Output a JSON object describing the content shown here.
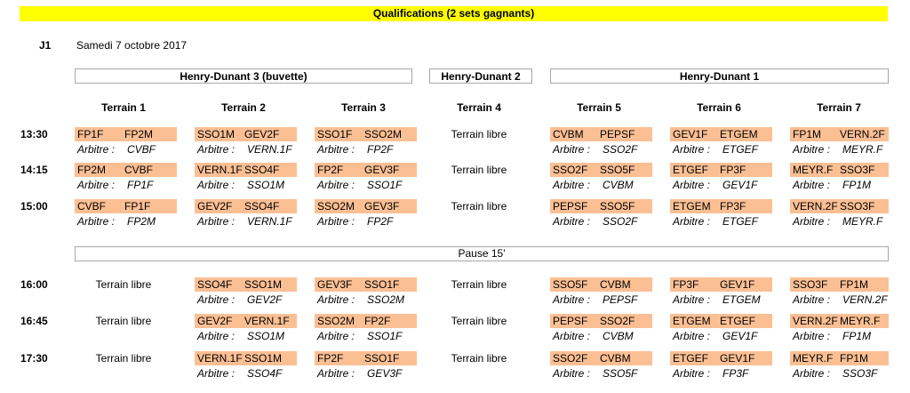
{
  "header": {
    "title": "Qualifications (2 sets gagnants)",
    "day_code": "J1",
    "date": "Samedi 7 octobre 2017"
  },
  "venues": [
    "Henry-Dunant 3 (buvette)",
    "Henry-Dunant 2",
    "Henry-Dunant 1"
  ],
  "courts": [
    "Terrain 1",
    "Terrain 2",
    "Terrain 3",
    "Terrain 4",
    "Terrain 5",
    "Terrain 6",
    "Terrain 7"
  ],
  "referee_label": "Arbitre :",
  "free_label": "Terrain libre",
  "pause_label": "Pause 15'",
  "slots": [
    {
      "time": "13:30",
      "matches": [
        {
          "a": "FP1F",
          "b": "FP2M",
          "ref": "CVBF"
        },
        {
          "a": "SSO1M",
          "b": "GEV2F",
          "ref": "VERN.1F"
        },
        {
          "a": "SSO1F",
          "b": "SSO2M",
          "ref": "FP2F"
        },
        null,
        {
          "a": "CVBM",
          "b": "PEPSF",
          "ref": "SSO2F"
        },
        {
          "a": "GEV1F",
          "b": "ETGEM",
          "ref": "ETGEF"
        },
        {
          "a": "FP1M",
          "b": "VERN.2F",
          "ref": "MEYR.F"
        }
      ]
    },
    {
      "time": "14:15",
      "matches": [
        {
          "a": "FP2M",
          "b": "CVBF",
          "ref": "FP1F"
        },
        {
          "a": "VERN.1F",
          "b": "SSO4F",
          "ref": "SSO1M"
        },
        {
          "a": "FP2F",
          "b": "GEV3F",
          "ref": "SSO1F"
        },
        null,
        {
          "a": "SSO2F",
          "b": "SSO5F",
          "ref": "CVBM"
        },
        {
          "a": "ETGEF",
          "b": "FP3F",
          "ref": "GEV1F"
        },
        {
          "a": "MEYR.F",
          "b": "SSO3F",
          "ref": "FP1M"
        }
      ]
    },
    {
      "time": "15:00",
      "matches": [
        {
          "a": "CVBF",
          "b": "FP1F",
          "ref": "FP2M"
        },
        {
          "a": "GEV2F",
          "b": "SSO4F",
          "ref": "VERN.1F"
        },
        {
          "a": "SSO2M",
          "b": "GEV3F",
          "ref": "FP2F"
        },
        null,
        {
          "a": "PEPSF",
          "b": "SSO5F",
          "ref": "SSO2F"
        },
        {
          "a": "ETGEM",
          "b": "FP3F",
          "ref": "ETGEF"
        },
        {
          "a": "VERN.2F",
          "b": "SSO3F",
          "ref": "MEYR.F"
        }
      ]
    },
    {
      "time": "16:00",
      "matches": [
        null,
        {
          "a": "SSO4F",
          "b": "SSO1M",
          "ref": "GEV2F"
        },
        {
          "a": "GEV3F",
          "b": "SSO1F",
          "ref": "SSO2M"
        },
        null,
        {
          "a": "SSO5F",
          "b": "CVBM",
          "ref": "PEPSF"
        },
        {
          "a": "FP3F",
          "b": "GEV1F",
          "ref": "ETGEM"
        },
        {
          "a": "SSO3F",
          "b": "FP1M",
          "ref": "VERN.2F"
        }
      ]
    },
    {
      "time": "16:45",
      "matches": [
        null,
        {
          "a": "GEV2F",
          "b": "VERN.1F",
          "ref": "SSO1M"
        },
        {
          "a": "SSO2M",
          "b": "FP2F",
          "ref": "SSO1F"
        },
        null,
        {
          "a": "PEPSF",
          "b": "SSO2F",
          "ref": "CVBM"
        },
        {
          "a": "ETGEM",
          "b": "ETGEF",
          "ref": "GEV1F"
        },
        {
          "a": "VERN.2F",
          "b": "MEYR.F",
          "ref": "FP1M"
        }
      ]
    },
    {
      "time": "17:30",
      "matches": [
        null,
        {
          "a": "VERN.1F",
          "b": "SSO1M",
          "ref": "SSO4F"
        },
        {
          "a": "FP2F",
          "b": "SSO1F",
          "ref": "GEV3F"
        },
        null,
        {
          "a": "SSO2F",
          "b": "CVBM",
          "ref": "SSO5F"
        },
        {
          "a": "ETGEF",
          "b": "GEV1F",
          "ref": "FP3F"
        },
        {
          "a": "MEYR.F",
          "b": "FP1M",
          "ref": "SSO3F"
        }
      ]
    }
  ],
  "colors": {
    "banner": "#ffff00",
    "match_fill": "#fbbf94",
    "border": "#a8a8a8"
  }
}
